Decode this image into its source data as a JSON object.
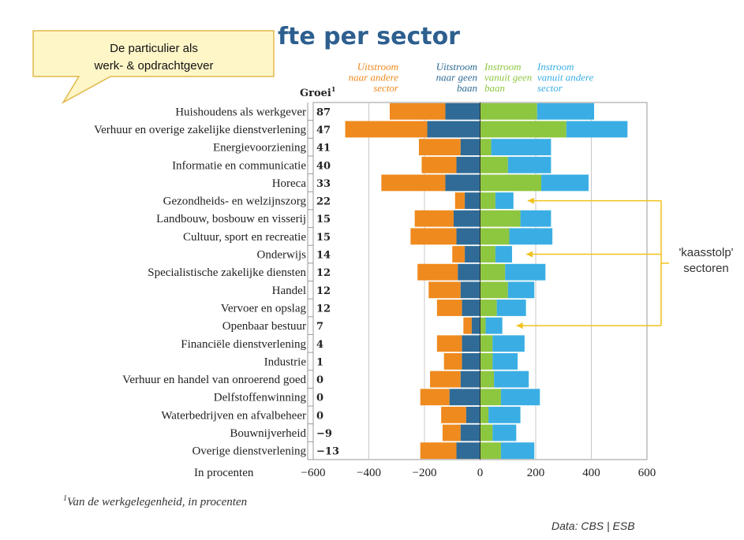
{
  "chart_data": {
    "type": "bar",
    "title_visible": "fte per sector",
    "growth_header": "Groei",
    "growth_header_sup": "1",
    "series": [
      {
        "name": "Uitstroom naar andere sector",
        "lines": [
          "Uitstroom",
          "naar andere",
          "sector"
        ],
        "color": "#ef8a1e"
      },
      {
        "name": "Uitstroom naar geen baan",
        "lines": [
          "Uitstroom",
          "naar geen",
          "baan"
        ],
        "color": "#2f6b96"
      },
      {
        "name": "Instroom vanuit geen baan",
        "lines": [
          "Instroom",
          "vanuit geen",
          "baan"
        ],
        "color": "#8dc63f"
      },
      {
        "name": "Instroom vanuit andere sector",
        "lines": [
          "Instroom",
          "vanuit andere",
          "sector"
        ],
        "color": "#3aaee4"
      }
    ],
    "categories": [
      {
        "label": "Huishoudens als werkgever",
        "growth": "87",
        "out_other": 200,
        "out_none": 125,
        "in_none": 205,
        "in_other": 205
      },
      {
        "label": "Verhuur en overige zakelijke dienstverlening",
        "growth": "47",
        "out_other": 295,
        "out_none": 190,
        "in_none": 310,
        "in_other": 220
      },
      {
        "label": "Energievoorziening",
        "growth": "41",
        "out_other": 150,
        "out_none": 70,
        "in_none": 40,
        "in_other": 215
      },
      {
        "label": "Informatie en communicatie",
        "growth": "40",
        "out_other": 125,
        "out_none": 85,
        "in_none": 100,
        "in_other": 155
      },
      {
        "label": "Horeca",
        "growth": "33",
        "out_other": 230,
        "out_none": 125,
        "in_none": 220,
        "in_other": 170
      },
      {
        "label": "Gezondheids- en welzijnszorg",
        "growth": "22",
        "out_other": 35,
        "out_none": 55,
        "in_none": 55,
        "in_other": 65
      },
      {
        "label": "Landbouw, bosbouw en visserij",
        "growth": "15",
        "out_other": 140,
        "out_none": 95,
        "in_none": 145,
        "in_other": 110
      },
      {
        "label": "Cultuur, sport en recreatie",
        "growth": "15",
        "out_other": 165,
        "out_none": 85,
        "in_none": 105,
        "in_other": 155
      },
      {
        "label": "Onderwijs",
        "growth": "14",
        "out_other": 45,
        "out_none": 55,
        "in_none": 55,
        "in_other": 60
      },
      {
        "label": "Specialistische zakelijke diensten",
        "growth": "12",
        "out_other": 145,
        "out_none": 80,
        "in_none": 90,
        "in_other": 145
      },
      {
        "label": "Handel",
        "growth": "12",
        "out_other": 115,
        "out_none": 70,
        "in_none": 100,
        "in_other": 95
      },
      {
        "label": "Vervoer en opslag",
        "growth": "12",
        "out_other": 90,
        "out_none": 65,
        "in_none": 60,
        "in_other": 105
      },
      {
        "label": "Openbaar bestuur",
        "growth": "7",
        "out_other": 30,
        "out_none": 30,
        "in_none": 20,
        "in_other": 60
      },
      {
        "label": "Financiële dienstverlening",
        "growth": "4",
        "out_other": 90,
        "out_none": 65,
        "in_none": 45,
        "in_other": 115
      },
      {
        "label": "Industrie",
        "growth": "1",
        "out_other": 65,
        "out_none": 65,
        "in_none": 45,
        "in_other": 90
      },
      {
        "label": "Verhuur en handel van onroerend goed",
        "growth": "0",
        "out_other": 110,
        "out_none": 70,
        "in_none": 50,
        "in_other": 125
      },
      {
        "label": "Delfstoffenwinning",
        "growth": "0",
        "out_other": 105,
        "out_none": 110,
        "in_none": 75,
        "in_other": 140
      },
      {
        "label": "Waterbedrijven en afvalbeheer",
        "growth": "0",
        "out_other": 90,
        "out_none": 50,
        "in_none": 30,
        "in_other": 115
      },
      {
        "label": "Bouwnijverheid",
        "growth": "−9",
        "out_other": 65,
        "out_none": 70,
        "in_none": 45,
        "in_other": 85
      },
      {
        "label": "Overige dienstverlening",
        "growth": "−13",
        "out_other": 130,
        "out_none": 85,
        "in_none": 75,
        "in_other": 120
      }
    ],
    "xlim": [
      -600,
      600
    ],
    "xticks": [
      {
        "v": -600,
        "t": "−600"
      },
      {
        "v": -400,
        "t": "−400"
      },
      {
        "v": -200,
        "t": "−200"
      },
      {
        "v": 0,
        "t": "0"
      },
      {
        "v": 200,
        "t": "200"
      },
      {
        "v": 400,
        "t": "400"
      },
      {
        "v": 600,
        "t": "600"
      }
    ],
    "xlabel": "In procenten",
    "grid": true,
    "highlighted": [
      "Gezondheids- en welzijnszorg",
      "Onderwijs",
      "Openbaar bestuur"
    ]
  },
  "footnote_mark": "1",
  "footnote": "Van de werkgelegenheid, in procenten",
  "source": "Data: CBS | ESB",
  "callout": {
    "line1": "De particulier als",
    "line2": "werk- & opdrachtgever",
    "fill": "#fff6c8",
    "stroke": "#e0b84a"
  },
  "side_note": {
    "line1": "'kaasstolp'",
    "line2": "sectoren",
    "color": "#f2c21c"
  }
}
